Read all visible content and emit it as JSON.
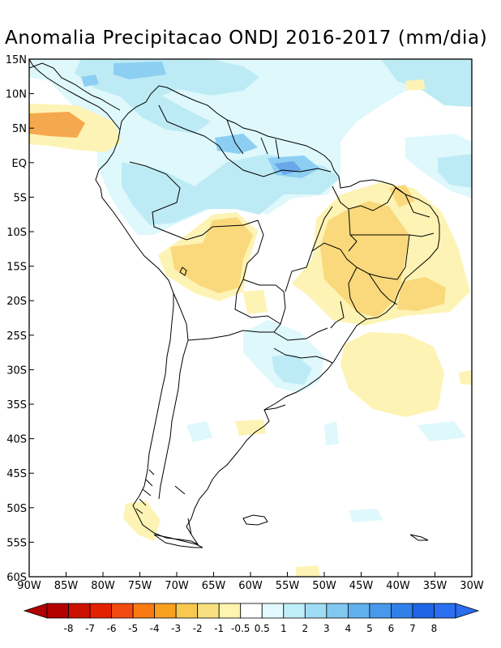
{
  "title": "Anomalia Precipitacao ONDJ 2016-2017 (mm/dia)",
  "lat_labels": [
    "15N",
    "10N",
    "5N",
    "EQ",
    "5S",
    "10S",
    "15S",
    "20S",
    "25S",
    "30S",
    "35S",
    "40S",
    "45S",
    "50S",
    "55S",
    "60S"
  ],
  "lon_labels": [
    "90W",
    "85W",
    "80W",
    "75W",
    "70W",
    "65W",
    "60W",
    "55W",
    "50W",
    "45W",
    "40W",
    "35W",
    "30W"
  ],
  "colorbar": {
    "ticks": [
      "-8",
      "-7",
      "-6",
      "-5",
      "-4",
      "-3",
      "-2",
      "-1",
      "-0.5",
      "0.5",
      "1",
      "2",
      "3",
      "4",
      "5",
      "6",
      "7",
      "8"
    ],
    "colors": [
      "#b30000",
      "#cc1100",
      "#e22200",
      "#f24a10",
      "#f87a10",
      "#f8a020",
      "#f8c850",
      "#f8e080",
      "#fff4b0",
      "#ffffff",
      "#e2fafe",
      "#c0eef8",
      "#a0dcf4",
      "#80c8f0",
      "#60b0ee",
      "#4898ec",
      "#3080ea",
      "#1e66e6",
      "#2c6ef0"
    ]
  },
  "palette": {
    "anomaly_dry_light": "#fdf3b4",
    "anomaly_dry": "#f9d97c",
    "anomaly_dry_strong": "#f5a94e",
    "anomaly_wet_light": "#def8fc",
    "anomaly_wet": "#bdebf5",
    "anomaly_wet_strong": "#8ccff2",
    "anomaly_wet_max": "#6aa7ea",
    "coastline": "#000000"
  }
}
